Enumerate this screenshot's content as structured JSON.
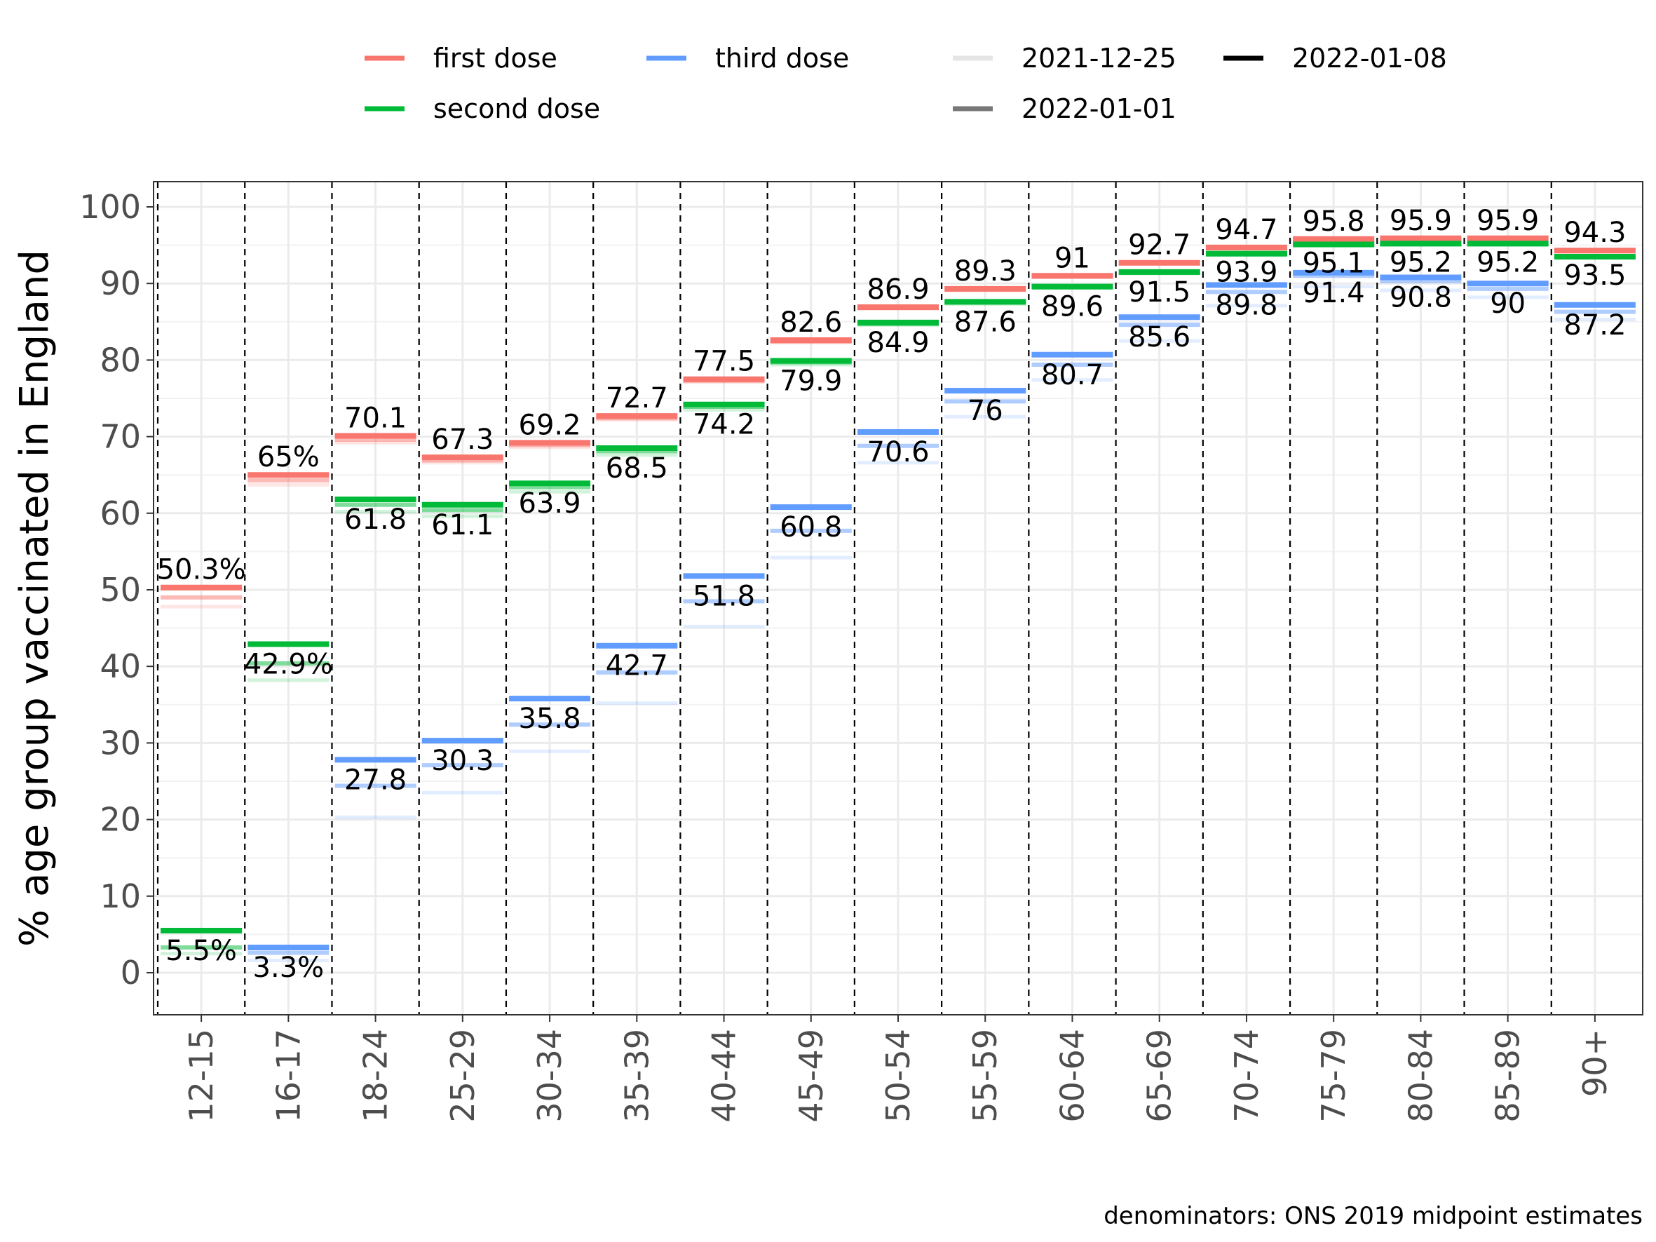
{
  "chart_data": {
    "type": "line",
    "ylabel": "% age group vaccinated in England",
    "xlabel": "",
    "caption": "denominators: ONS 2019 midpoint estimates",
    "ylim": [
      -5,
      103
    ],
    "yticks": [
      0,
      10,
      20,
      30,
      40,
      50,
      60,
      70,
      80,
      90,
      100
    ],
    "grid": true,
    "legend_position": "top",
    "categories": [
      "12-15",
      "16-17",
      "18-24",
      "25-29",
      "30-34",
      "35-39",
      "40-44",
      "45-49",
      "50-54",
      "55-59",
      "60-64",
      "65-69",
      "70-74",
      "75-79",
      "80-84",
      "85-89",
      "90+"
    ],
    "legend": {
      "doses": [
        {
          "key": "first",
          "label": "first dose",
          "color": "#F8766D"
        },
        {
          "key": "second",
          "label": "second dose",
          "color": "#00BA38"
        },
        {
          "key": "third",
          "label": "third dose",
          "color": "#619CFF"
        }
      ],
      "dates": [
        {
          "label": "2021-12-25",
          "color": "#e5e5e5"
        },
        {
          "label": "2022-01-01",
          "color": "#777777"
        },
        {
          "label": "2022-01-08",
          "color": "#000000"
        }
      ]
    },
    "series": [
      {
        "name": "first dose",
        "color": "#F8766D",
        "2021-12-25": [
          47.8,
          63.7,
          69.2,
          66.6,
          68.6,
          72.2,
          77.1,
          82.3,
          86.7,
          89.1,
          90.8,
          92.6,
          94.6,
          95.7,
          95.8,
          95.8,
          94.2
        ],
        "2022-01-01": [
          49.0,
          64.3,
          69.6,
          66.9,
          68.9,
          72.4,
          77.3,
          82.4,
          86.8,
          89.2,
          90.9,
          92.6,
          94.6,
          95.7,
          95.8,
          95.8,
          94.2
        ],
        "2022-01-08": [
          50.3,
          65,
          70.1,
          67.3,
          69.2,
          72.7,
          77.5,
          82.6,
          86.9,
          89.3,
          91,
          92.7,
          94.7,
          95.8,
          95.9,
          95.9,
          94.3
        ],
        "labels": [
          "50.3%",
          "65%",
          "70.1",
          "67.3",
          "69.2",
          "72.7",
          "77.5",
          "82.6",
          "86.9",
          "89.3",
          "91",
          "92.7",
          "94.7",
          "95.8",
          "95.9",
          "95.9",
          "94.3"
        ]
      },
      {
        "name": "second dose",
        "color": "#00BA38",
        "2021-12-25": [
          2.5,
          38.2,
          60.2,
          59.6,
          62.8,
          67.6,
          73.5,
          79.4,
          84.6,
          87.3,
          89.4,
          91.3,
          93.7,
          95.0,
          95.1,
          95.1,
          93.4
        ],
        "2022-01-01": [
          3.3,
          40.4,
          61.1,
          60.4,
          63.4,
          68.1,
          73.9,
          79.7,
          84.7,
          87.5,
          89.5,
          91.4,
          93.8,
          95.0,
          95.1,
          95.1,
          93.4
        ],
        "2022-01-08": [
          5.5,
          42.9,
          61.8,
          61.1,
          63.9,
          68.5,
          74.2,
          79.9,
          84.9,
          87.6,
          89.6,
          91.5,
          93.9,
          95.1,
          95.2,
          95.2,
          93.5
        ],
        "labels": [
          "5.5%",
          "42.9%",
          "61.8",
          "61.1",
          "63.9",
          "68.5",
          "74.2",
          "79.9",
          "84.9",
          "87.6",
          "89.6",
          "91.5",
          "93.9",
          "95.1",
          "95.2",
          "95.2",
          "93.5"
        ]
      },
      {
        "name": "third dose",
        "color": "#619CFF",
        "2021-12-25": [
          null,
          1.6,
          20.3,
          23.5,
          28.9,
          35.2,
          45.2,
          54.2,
          66.6,
          72.6,
          77.4,
          82.5,
          87.1,
          89.6,
          89.1,
          88.2,
          85.3
        ],
        "2022-01-01": [
          null,
          2.6,
          24.4,
          27.1,
          32.4,
          39.2,
          48.5,
          57.7,
          68.8,
          74.6,
          79.4,
          84.6,
          88.9,
          91.0,
          90.3,
          89.3,
          86.3
        ],
        "2022-01-08": [
          null,
          3.3,
          27.8,
          30.3,
          35.8,
          42.7,
          51.8,
          60.8,
          70.6,
          76,
          80.7,
          85.6,
          89.8,
          91.4,
          90.8,
          90,
          87.2
        ],
        "labels": [
          "",
          "3.3%",
          "27.8",
          "30.3",
          "35.8",
          "42.7",
          "51.8",
          "60.8",
          "70.6",
          "76",
          "80.7",
          "85.6",
          "89.8",
          "91.4",
          "90.8",
          "90",
          "87.2"
        ]
      }
    ]
  }
}
